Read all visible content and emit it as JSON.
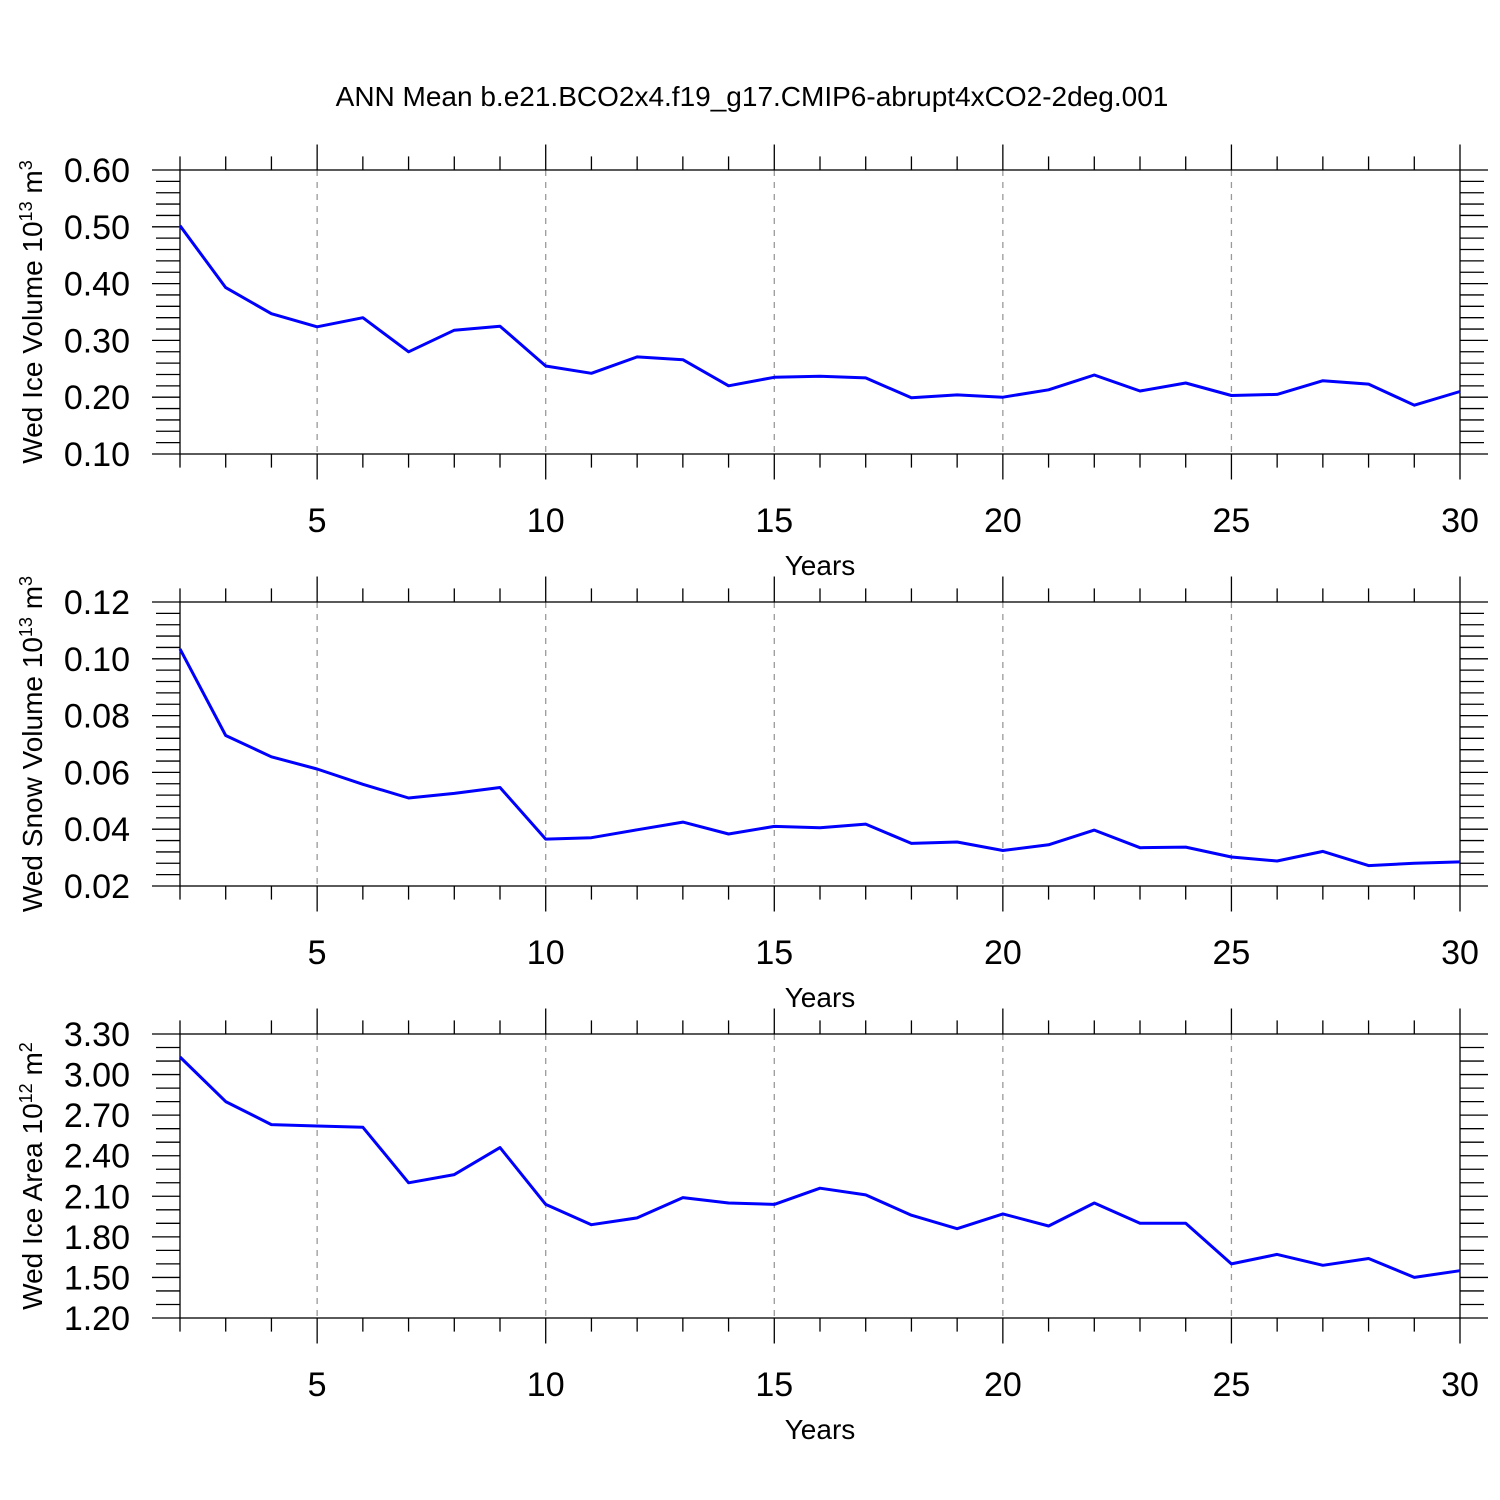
{
  "title": "ANN Mean b.e21.BCO2x4.f19_g17.CMIP6-abrupt4xCO2-2deg.001",
  "colors": {
    "line": "#0000ff",
    "axis": "#000000",
    "grid": "#999999"
  },
  "chart_data": [
    {
      "type": "line",
      "xlabel": "Years",
      "ylabel": {
        "main": "Wed Ice Volume 10",
        "exp": "13",
        "unit": " m",
        "unit_exp": "3"
      },
      "xlim": [
        2,
        30
      ],
      "ylim": [
        0.1,
        0.6
      ],
      "xticks": [
        5,
        10,
        15,
        20,
        25,
        30
      ],
      "xtick_labels": [
        "5",
        "10",
        "15",
        "20",
        "25",
        "30"
      ],
      "yticks": [
        0.1,
        0.2,
        0.3,
        0.4,
        0.5,
        0.6
      ],
      "ytick_labels": [
        "0.10",
        "0.20",
        "0.30",
        "0.40",
        "0.50",
        "0.60"
      ],
      "y_minor_step": 0.02,
      "grid": "vertical dashed at major x ticks",
      "x": [
        2,
        3,
        4,
        5,
        6,
        7,
        8,
        9,
        10,
        11,
        12,
        13,
        14,
        15,
        16,
        17,
        18,
        19,
        20,
        21,
        22,
        23,
        24,
        25,
        26,
        27,
        28,
        29,
        30
      ],
      "values": [
        0.502,
        0.393,
        0.347,
        0.324,
        0.34,
        0.28,
        0.318,
        0.325,
        0.255,
        0.242,
        0.271,
        0.266,
        0.22,
        0.235,
        0.237,
        0.234,
        0.199,
        0.204,
        0.2,
        0.213,
        0.239,
        0.211,
        0.225,
        0.203,
        0.205,
        0.229,
        0.223,
        0.186,
        0.21
      ]
    },
    {
      "type": "line",
      "xlabel": "Years",
      "ylabel": {
        "main": "Wed Snow Volume 10",
        "exp": "13",
        "unit": " m",
        "unit_exp": "3"
      },
      "xlim": [
        2,
        30
      ],
      "ylim": [
        0.02,
        0.12
      ],
      "xticks": [
        5,
        10,
        15,
        20,
        25,
        30
      ],
      "xtick_labels": [
        "5",
        "10",
        "15",
        "20",
        "25",
        "30"
      ],
      "yticks": [
        0.02,
        0.04,
        0.06,
        0.08,
        0.1,
        0.12
      ],
      "ytick_labels": [
        "0.02",
        "0.04",
        "0.06",
        "0.08",
        "0.10",
        "0.12"
      ],
      "y_minor_step": 0.004,
      "grid": "vertical dashed at major x ticks",
      "x": [
        2,
        3,
        4,
        5,
        6,
        7,
        8,
        9,
        10,
        11,
        12,
        13,
        14,
        15,
        16,
        17,
        18,
        19,
        20,
        21,
        22,
        23,
        24,
        25,
        26,
        27,
        28,
        29,
        30
      ],
      "values": [
        0.1035,
        0.073,
        0.0655,
        0.0612,
        0.0558,
        0.051,
        0.0526,
        0.0547,
        0.0365,
        0.037,
        0.0398,
        0.0425,
        0.0383,
        0.041,
        0.0405,
        0.0418,
        0.035,
        0.0355,
        0.0325,
        0.0345,
        0.0397,
        0.0335,
        0.0337,
        0.0302,
        0.0288,
        0.0322,
        0.0272,
        0.028,
        0.0285
      ]
    },
    {
      "type": "line",
      "xlabel": "Years",
      "ylabel": {
        "main": "Wed Ice Area 10",
        "exp": "12",
        "unit": " m",
        "unit_exp": "2"
      },
      "xlim": [
        2,
        30
      ],
      "ylim": [
        1.2,
        3.3
      ],
      "xticks": [
        5,
        10,
        15,
        20,
        25,
        30
      ],
      "xtick_labels": [
        "5",
        "10",
        "15",
        "20",
        "25",
        "30"
      ],
      "yticks": [
        1.2,
        1.5,
        1.8,
        2.1,
        2.4,
        2.7,
        3.0,
        3.3
      ],
      "ytick_labels": [
        "1.20",
        "1.50",
        "1.80",
        "2.10",
        "2.40",
        "2.70",
        "3.00",
        "3.30"
      ],
      "y_minor_step": 0.1,
      "grid": "vertical dashed at major x ticks",
      "x": [
        2,
        3,
        4,
        5,
        6,
        7,
        8,
        9,
        10,
        11,
        12,
        13,
        14,
        15,
        16,
        17,
        18,
        19,
        20,
        21,
        22,
        23,
        24,
        25,
        26,
        27,
        28,
        29,
        30
      ],
      "values": [
        3.13,
        2.8,
        2.63,
        2.62,
        2.61,
        2.2,
        2.26,
        2.46,
        2.04,
        1.89,
        1.94,
        2.09,
        2.05,
        2.04,
        2.16,
        2.11,
        1.96,
        1.86,
        1.97,
        1.88,
        2.05,
        1.9,
        1.9,
        1.6,
        1.67,
        1.59,
        1.64,
        1.5,
        1.55
      ]
    }
  ]
}
